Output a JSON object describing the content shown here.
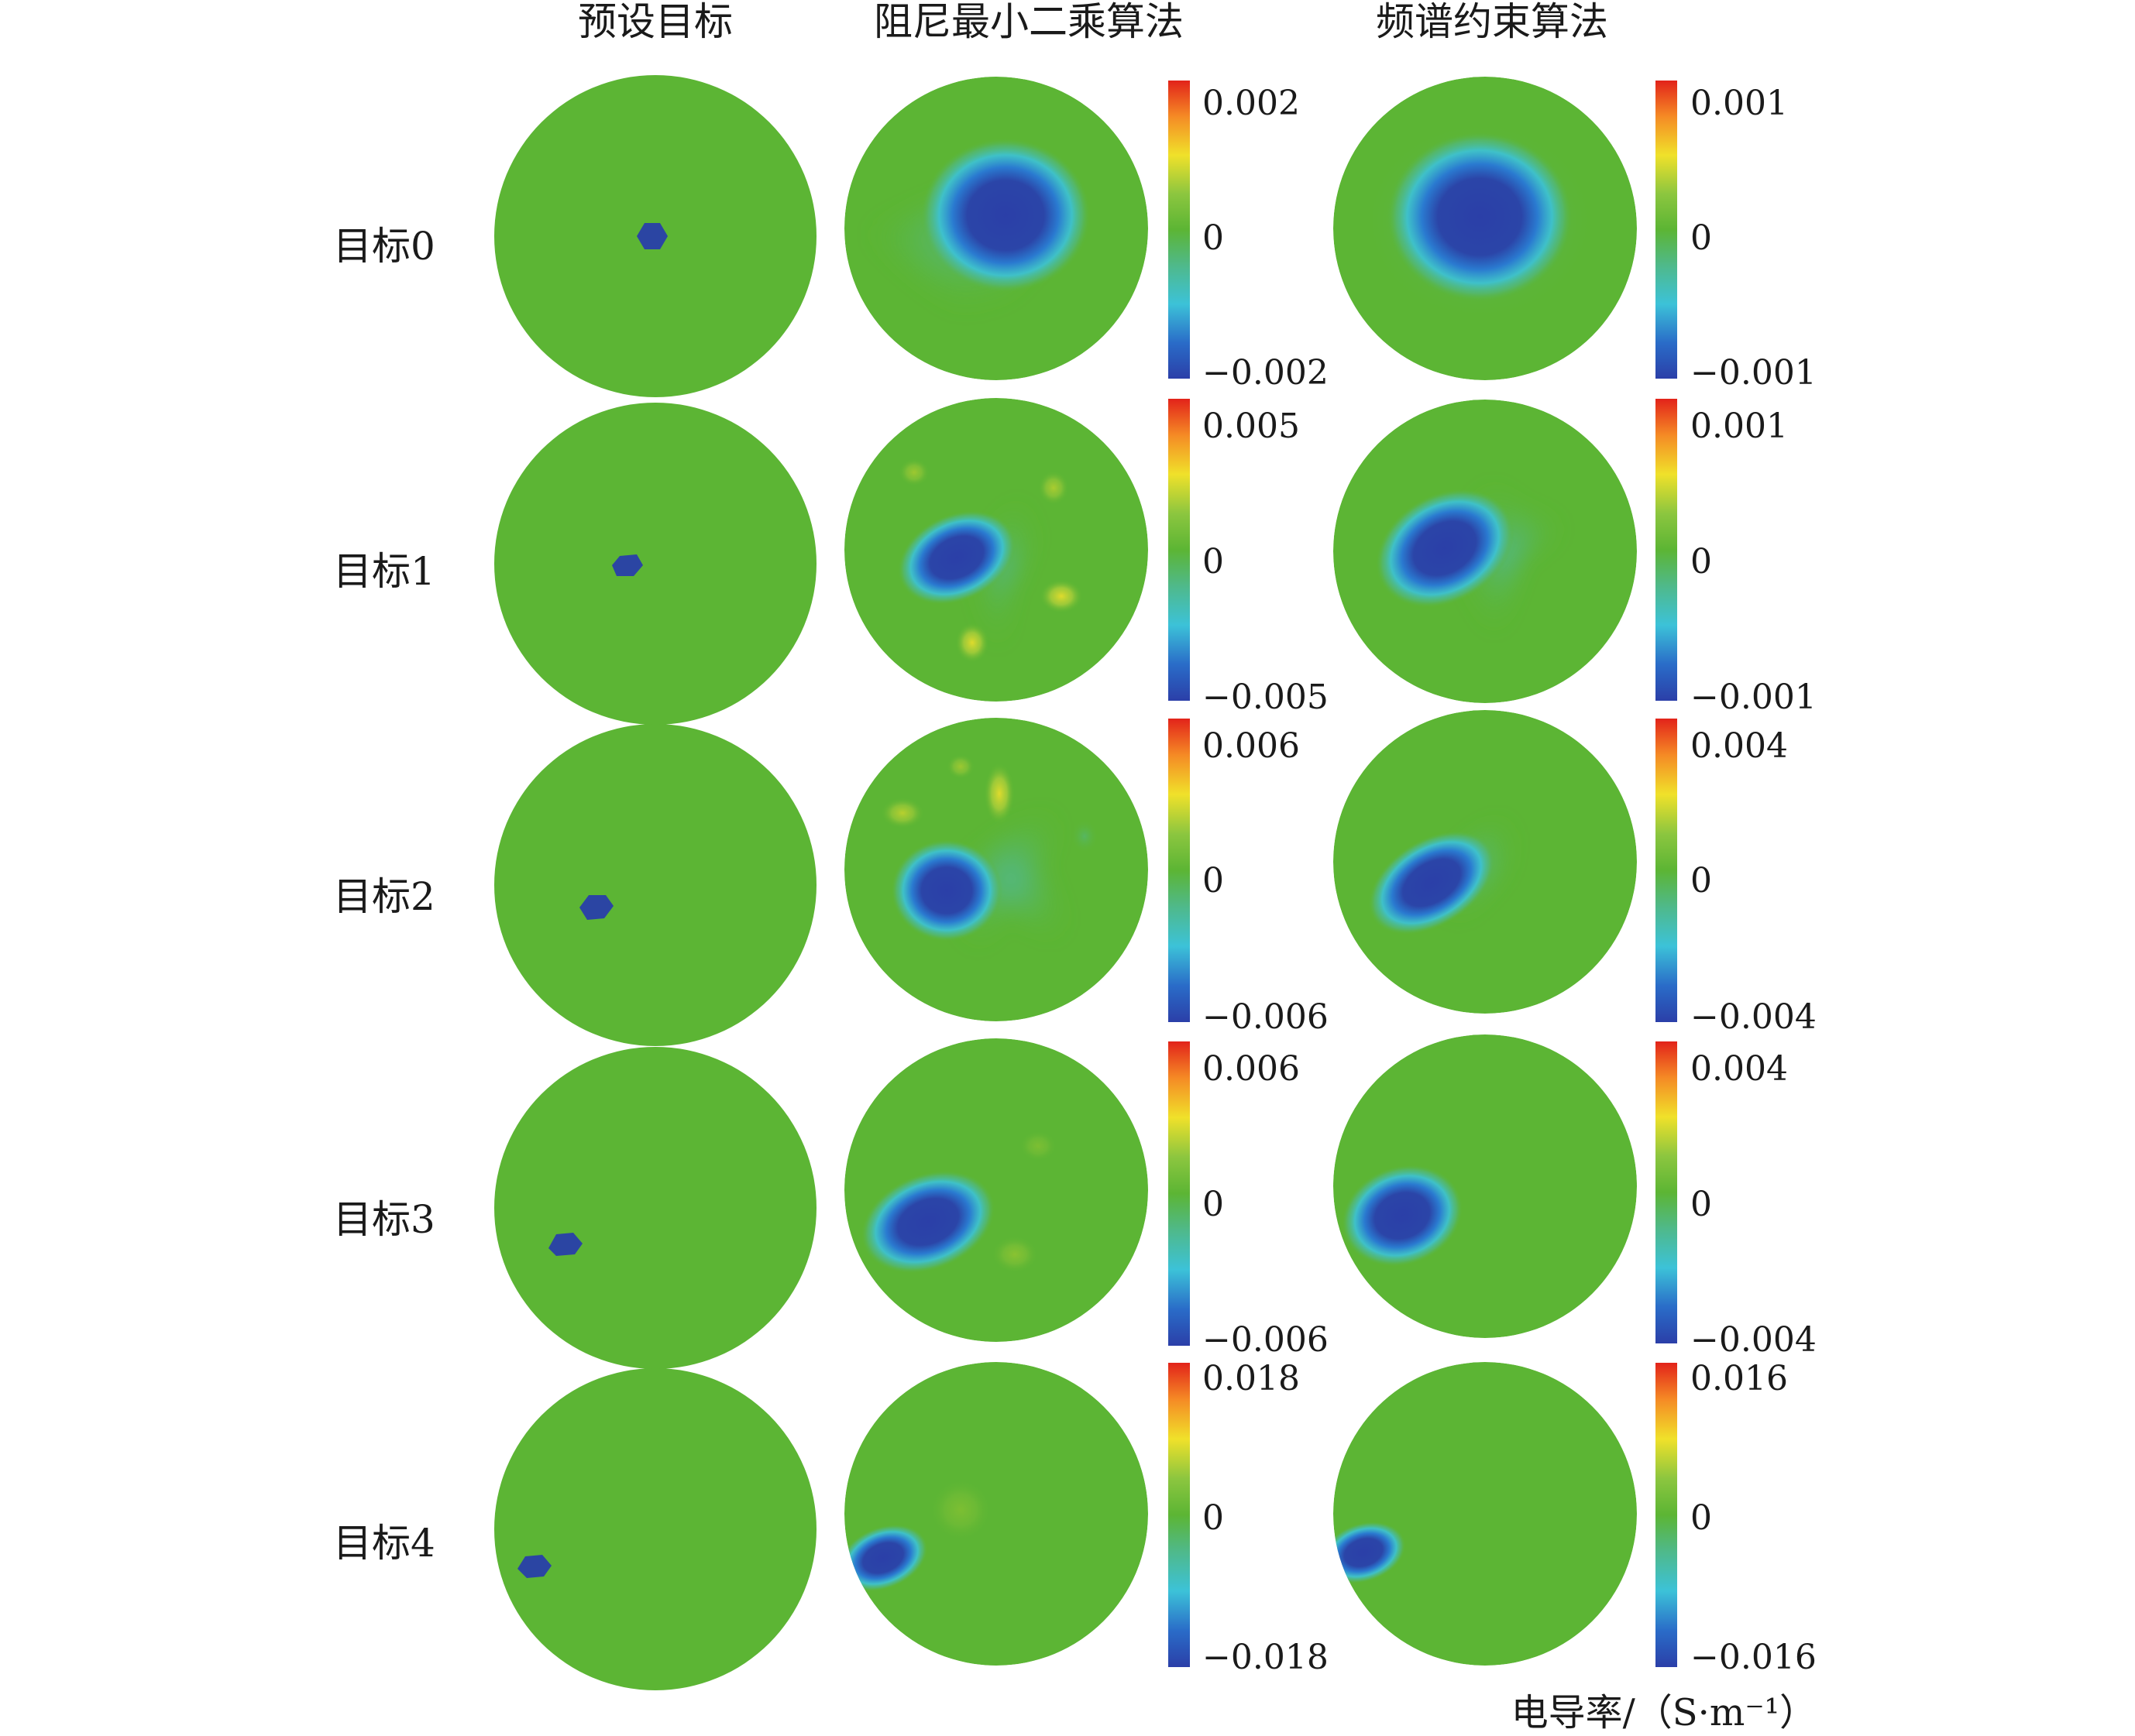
{
  "column_headers": [
    "预设目标",
    "阻尼最小二乘算法",
    "频谱约束算法"
  ],
  "unit_label": "电导率/（S·m⁻¹）",
  "colors": {
    "background_green": "#5cb534",
    "target_blue": "#2b45a3",
    "colormap": [
      "#2b3fa8",
      "#2a7ad0",
      "#3cc2d8",
      "#4fb98a",
      "#5cb534",
      "#8cc63f",
      "#f0e12a",
      "#f58a25",
      "#e2231a"
    ]
  },
  "rows": [
    {
      "label": "目标0",
      "cb_dls": {
        "max": "0.002",
        "mid": "0",
        "min": "−0.002"
      },
      "cb_sc": {
        "max": "0.001",
        "mid": "0",
        "min": "−0.001"
      }
    },
    {
      "label": "目标1",
      "cb_dls": {
        "max": "0.005",
        "mid": "0",
        "min": "−0.005"
      },
      "cb_sc": {
        "max": "0.001",
        "mid": "0",
        "min": "−0.001"
      }
    },
    {
      "label": "目标2",
      "cb_dls": {
        "max": "0.006",
        "mid": "0",
        "min": "−0.006"
      },
      "cb_sc": {
        "max": "0.004",
        "mid": "0",
        "min": "−0.004"
      }
    },
    {
      "label": "目标3",
      "cb_dls": {
        "max": "0.006",
        "mid": "0",
        "min": "−0.006"
      },
      "cb_sc": {
        "max": "0.004",
        "mid": "0",
        "min": "−0.004"
      }
    },
    {
      "label": "目标4",
      "cb_dls": {
        "max": "0.018",
        "mid": "0",
        "min": "−0.018"
      },
      "cb_sc": {
        "max": "0.016",
        "mid": "0",
        "min": "−0.016"
      }
    }
  ]
}
